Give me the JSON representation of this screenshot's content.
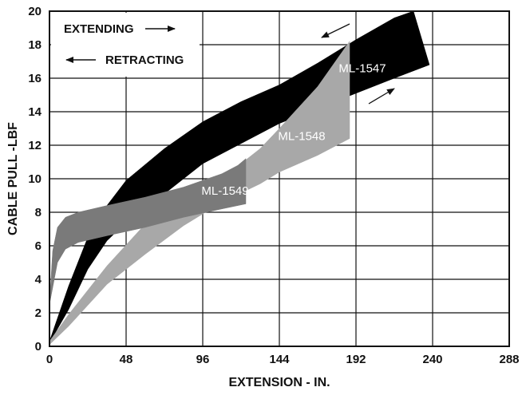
{
  "chart_data": {
    "type": "area",
    "xlabel": "EXTENSION - IN.",
    "ylabel": "CABLE PULL -LBF",
    "xlim": [
      0,
      288
    ],
    "ylim": [
      0,
      20
    ],
    "x_ticks": [
      "0",
      "48",
      "96",
      "144",
      "192",
      "240",
      "288"
    ],
    "y_ticks": [
      "0",
      "2",
      "4",
      "6",
      "8",
      "10",
      "12",
      "14",
      "16",
      "18",
      "20"
    ],
    "grid": true,
    "annotations": {
      "extending": "EXTENDING",
      "retracting": "RETRACTING"
    },
    "series": [
      {
        "name": "ML-1547",
        "color": "#000000",
        "upper": [
          [
            0,
            0.3
          ],
          [
            12,
            3.6
          ],
          [
            24,
            6.5
          ],
          [
            36,
            8.4
          ],
          [
            48,
            9.9
          ],
          [
            72,
            11.8
          ],
          [
            96,
            13.4
          ],
          [
            120,
            14.6
          ],
          [
            144,
            15.6
          ],
          [
            168,
            16.9
          ],
          [
            192,
            18.3
          ],
          [
            216,
            19.6
          ],
          [
            228,
            20
          ]
        ],
        "lower": [
          [
            0,
            0.2
          ],
          [
            12,
            2.2
          ],
          [
            24,
            4.6
          ],
          [
            36,
            6.3
          ],
          [
            48,
            7.4
          ],
          [
            72,
            9.1
          ],
          [
            96,
            10.9
          ],
          [
            120,
            12.1
          ],
          [
            144,
            13.3
          ],
          [
            168,
            14.2
          ],
          [
            192,
            15.1
          ],
          [
            216,
            16.0
          ],
          [
            238,
            16.8
          ]
        ],
        "end_range": [
          16.8,
          20
        ]
      },
      {
        "name": "ML-1548",
        "color": "#a8a8a8",
        "upper": [
          [
            0,
            0.3
          ],
          [
            12,
            1.9
          ],
          [
            36,
            4.8
          ],
          [
            60,
            7.3
          ],
          [
            84,
            8.9
          ],
          [
            108,
            10.0
          ],
          [
            132,
            11.8
          ],
          [
            144,
            13.0
          ],
          [
            168,
            15.5
          ],
          [
            188,
            18.2
          ]
        ],
        "lower": [
          [
            0,
            0.1
          ],
          [
            12,
            1.2
          ],
          [
            36,
            3.7
          ],
          [
            60,
            5.5
          ],
          [
            84,
            7.2
          ],
          [
            108,
            8.6
          ],
          [
            132,
            9.7
          ],
          [
            144,
            10.4
          ],
          [
            168,
            11.4
          ],
          [
            188,
            12.4
          ]
        ],
        "end_range": [
          12.4,
          18.2
        ]
      },
      {
        "name": "ML-1549",
        "color": "#7a7a7a",
        "upper": [
          [
            0,
            2.6
          ],
          [
            2,
            5.7
          ],
          [
            5,
            7.1
          ],
          [
            10,
            7.7
          ],
          [
            18,
            8.0
          ],
          [
            36,
            8.4
          ],
          [
            60,
            8.9
          ],
          [
            84,
            9.5
          ],
          [
            108,
            10.3
          ],
          [
            118,
            10.8
          ],
          [
            123,
            11.2
          ]
        ],
        "lower": [
          [
            0,
            2.5
          ],
          [
            2,
            3.5
          ],
          [
            5,
            5.0
          ],
          [
            10,
            5.8
          ],
          [
            18,
            6.2
          ],
          [
            36,
            6.6
          ],
          [
            60,
            7.1
          ],
          [
            84,
            7.7
          ],
          [
            108,
            8.2
          ],
          [
            123,
            8.5
          ]
        ],
        "end_range": [
          8.5,
          11.2
        ]
      }
    ]
  }
}
